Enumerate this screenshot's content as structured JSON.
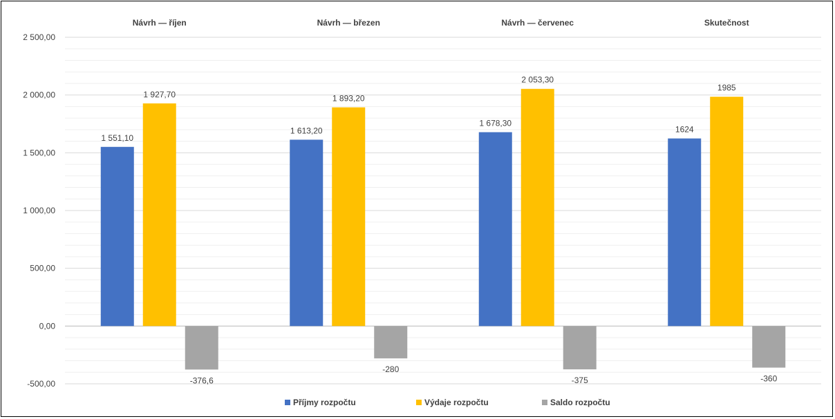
{
  "chart_data": {
    "type": "bar",
    "categories": [
      "Návrh — říjen",
      "Návrh — březen",
      "Návrh — červenec",
      "Skutečnost"
    ],
    "series": [
      {
        "name": "Příjmy rozpočtu",
        "color": "#4472C4",
        "values": [
          1551.1,
          1613.2,
          1678.3,
          1624
        ],
        "labels": [
          "1 551,10",
          "1 613,20",
          "1 678,30",
          "1624"
        ]
      },
      {
        "name": "Výdaje rozpočtu",
        "color": "#FFC000",
        "values": [
          1927.7,
          1893.2,
          2053.3,
          1985
        ],
        "labels": [
          "1 927,70",
          "1 893,20",
          "2 053,30",
          "1985"
        ]
      },
      {
        "name": "Saldo rozpočtu",
        "color": "#A5A5A5",
        "values": [
          -376.6,
          -280,
          -375,
          -360
        ],
        "labels": [
          "-376,6",
          "-280",
          "-375",
          "-360"
        ]
      }
    ],
    "y_ticks": [
      {
        "value": 2500,
        "label": "2 500,00"
      },
      {
        "value": 2000,
        "label": "2 000,00"
      },
      {
        "value": 1500,
        "label": "1 500,00"
      },
      {
        "value": 1000,
        "label": "1 000,00"
      },
      {
        "value": 500,
        "label": "500,00"
      },
      {
        "value": 0,
        "label": "0,00"
      },
      {
        "value": -500,
        "label": "-500,00"
      }
    ],
    "ylim": [
      -500,
      2500
    ],
    "grid": true,
    "legend_position": "bottom",
    "category_labels_position": "top"
  }
}
